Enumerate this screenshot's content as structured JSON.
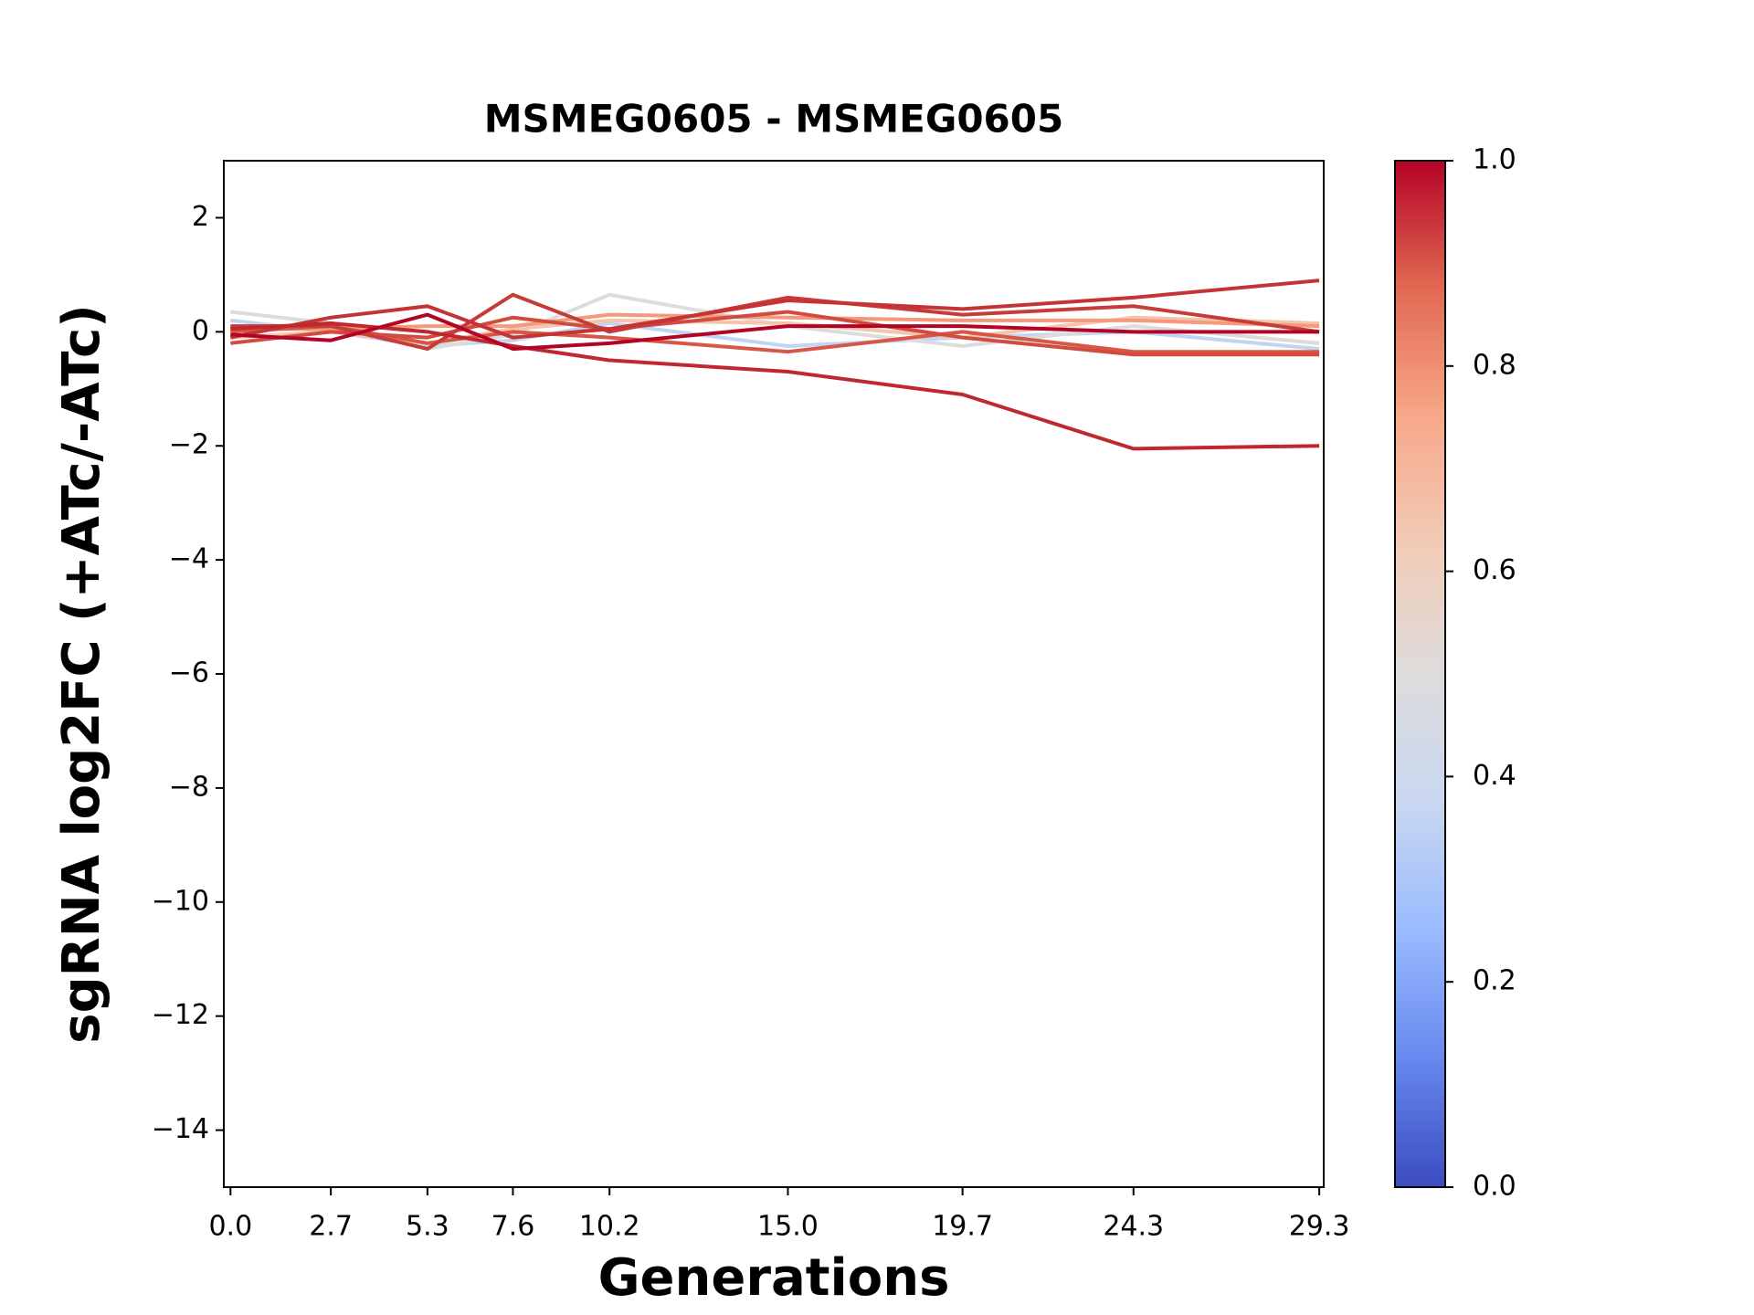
{
  "chart_data": {
    "type": "line",
    "title": "MSMEG0605 - MSMEG0605",
    "x_label": "Generations",
    "y_label": "sgRNA log2FC (+ATc/-ATc)",
    "x": [
      0,
      2.7,
      5.3,
      7.6,
      10.2,
      15.0,
      19.7,
      24.3,
      29.3
    ],
    "xlim": [
      -0.18,
      29.42
    ],
    "xticks": [
      {
        "value": 0,
        "label": "0.0"
      },
      2.7,
      5.3,
      7.6,
      10.2,
      {
        "value": 15,
        "label": "15.0"
      },
      19.7,
      24.3,
      29.3
    ],
    "ylim": [
      -15,
      3
    ],
    "yticks": [
      {
        "value": -14,
        "label": "−14"
      },
      {
        "value": -12,
        "label": "−12"
      },
      {
        "value": -10,
        "label": "−10"
      },
      {
        "value": -8,
        "label": "−8"
      },
      {
        "value": -6,
        "label": "−6"
      },
      {
        "value": -4,
        "label": "−4"
      },
      {
        "value": -2,
        "label": "−2"
      },
      0,
      2
    ],
    "grid": false,
    "series": [
      {
        "color": "#c0d4f5",
        "values": [
          0.2,
          0.0,
          -0.25,
          -0.15,
          0.15,
          -0.25,
          -0.1,
          0.0,
          -0.3
        ]
      },
      {
        "color": "#dddcdc",
        "values": [
          0.35,
          0.15,
          -0.3,
          -0.05,
          0.65,
          0.1,
          -0.25,
          0.1,
          -0.2
        ]
      },
      {
        "color": "#f5c4ac",
        "values": [
          -0.1,
          0.0,
          -0.2,
          0.05,
          0.2,
          0.15,
          -0.1,
          0.25,
          0.15
        ]
      },
      {
        "color": "#f49a7b",
        "values": [
          0.05,
          0.05,
          0.1,
          0.1,
          0.3,
          0.25,
          0.2,
          0.2,
          0.1
        ]
      },
      {
        "color": "#d85646",
        "values": [
          0.0,
          0.1,
          -0.2,
          0.0,
          -0.1,
          -0.35,
          0.0,
          -0.35,
          -0.35
        ]
      },
      {
        "color": "#d24b40",
        "values": [
          -0.2,
          0.0,
          -0.1,
          0.25,
          0.05,
          0.35,
          -0.1,
          -0.4,
          -0.4
        ]
      },
      {
        "color": "#c63c39",
        "values": [
          0.1,
          0.1,
          -0.3,
          0.65,
          0.0,
          0.6,
          0.3,
          0.45,
          0.0
        ]
      },
      {
        "color": "#c53334",
        "values": [
          -0.1,
          0.25,
          0.45,
          -0.1,
          0.05,
          0.55,
          0.4,
          0.6,
          0.9
        ]
      },
      {
        "color": "#c0282f",
        "values": [
          0.05,
          0.15,
          0.0,
          -0.25,
          -0.5,
          -0.7,
          -1.1,
          -2.05,
          -2.0
        ]
      },
      {
        "color": "#b40426",
        "values": [
          -0.05,
          -0.15,
          0.3,
          -0.3,
          -0.2,
          0.1,
          0.1,
          0.0,
          0.0
        ]
      }
    ],
    "colorbar": {
      "colormap": "coolwarm",
      "lim": [
        0,
        1
      ],
      "ticks": [
        {
          "value": 0,
          "label": "0.0"
        },
        {
          "value": 0.2,
          "label": "0.2"
        },
        {
          "value": 0.4,
          "label": "0.4"
        },
        {
          "value": 0.6,
          "label": "0.6"
        },
        {
          "value": 0.8,
          "label": "0.8"
        },
        {
          "value": 1,
          "label": "1.0"
        }
      ]
    }
  }
}
